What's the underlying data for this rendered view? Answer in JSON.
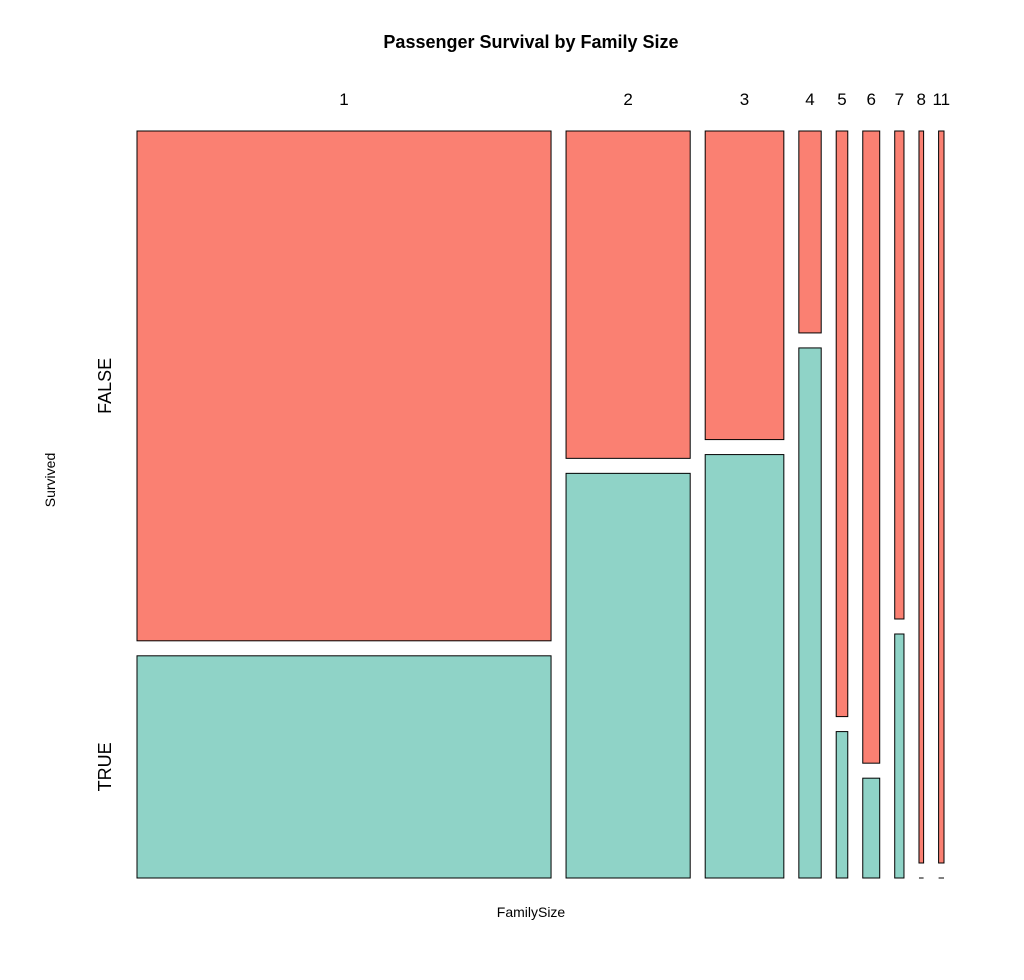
{
  "chart_data": {
    "type": "mosaic",
    "title": "Passenger Survival by Family Size",
    "xlabel": "FamilySize",
    "ylabel": "Survived",
    "categories": [
      "1",
      "2",
      "3",
      "4",
      "5",
      "6",
      "7",
      "8",
      "11"
    ],
    "rows": [
      "FALSE",
      "TRUE"
    ],
    "counts": {
      "FALSE": [
        374,
        72,
        43,
        8,
        12,
        19,
        8,
        6,
        7
      ],
      "TRUE": [
        163,
        89,
        59,
        21,
        3,
        3,
        4,
        0,
        0
      ]
    },
    "colors": {
      "FALSE": "#fa8072",
      "TRUE": "#8fd3c7"
    },
    "grid": false,
    "legend": "none"
  }
}
